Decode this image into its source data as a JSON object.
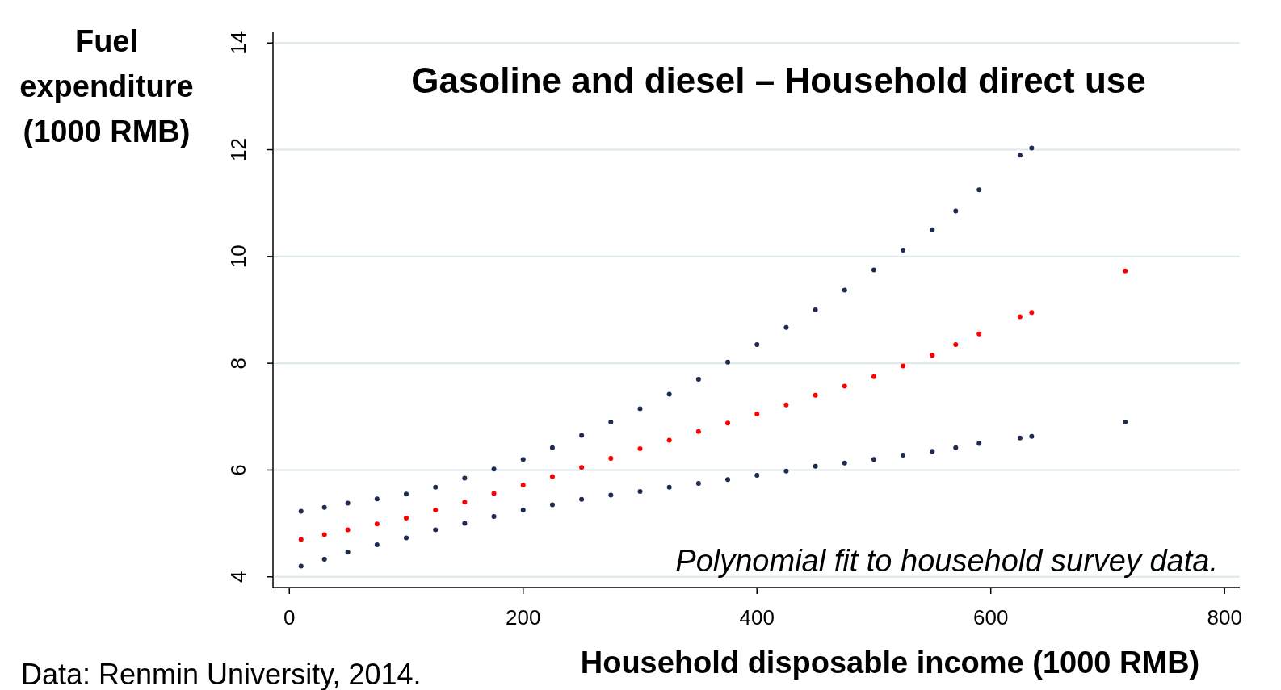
{
  "chart_data": {
    "type": "scatter",
    "title": "Gasoline and diesel – Household direct use",
    "xlabel": "Household disposable income (1000 RMB)",
    "ylabel": "Fuel expenditure (1000 RMB)",
    "annotations": [
      "Polynomial fit to household survey data.",
      "Data: Renmin University, 2014."
    ],
    "xlim": [
      -14,
      813
    ],
    "ylim": [
      3.8,
      14.2
    ],
    "xticks": [
      0,
      200,
      400,
      600,
      800
    ],
    "yticks": [
      4,
      6,
      8,
      10,
      12,
      14
    ],
    "grid": "y",
    "marker": "circle",
    "series": [
      {
        "color": "#1f2a50",
        "x": [
          10,
          30,
          50,
          75,
          100,
          125,
          150,
          175,
          200,
          225,
          250,
          275,
          300,
          325,
          350,
          375,
          400,
          425,
          450,
          475,
          500,
          525,
          550,
          570,
          590,
          625,
          635
        ],
        "values": [
          5.23,
          5.3,
          5.38,
          5.46,
          5.55,
          5.68,
          5.85,
          6.02,
          6.2,
          6.42,
          6.65,
          6.9,
          7.15,
          7.42,
          7.7,
          8.02,
          8.35,
          8.67,
          9.0,
          9.37,
          9.75,
          10.12,
          10.5,
          10.85,
          11.25,
          11.9,
          12.03
        ]
      },
      {
        "color": "#ff0000",
        "x": [
          10,
          30,
          50,
          75,
          100,
          125,
          150,
          175,
          200,
          225,
          250,
          275,
          300,
          325,
          350,
          375,
          400,
          425,
          450,
          475,
          500,
          525,
          550,
          570,
          590,
          625,
          635,
          715
        ],
        "values": [
          4.7,
          4.79,
          4.88,
          4.99,
          5.1,
          5.25,
          5.4,
          5.56,
          5.72,
          5.88,
          6.05,
          6.22,
          6.4,
          6.56,
          6.72,
          6.88,
          7.05,
          7.22,
          7.4,
          7.57,
          7.75,
          7.95,
          8.15,
          8.35,
          8.55,
          8.87,
          8.95,
          9.73
        ]
      },
      {
        "color": "#1f2a50",
        "x": [
          10,
          30,
          50,
          75,
          100,
          125,
          150,
          175,
          200,
          225,
          250,
          275,
          300,
          325,
          350,
          375,
          400,
          425,
          450,
          475,
          500,
          525,
          550,
          570,
          590,
          625,
          635,
          715
        ],
        "values": [
          4.2,
          4.33,
          4.46,
          4.6,
          4.73,
          4.88,
          5.0,
          5.13,
          5.25,
          5.35,
          5.45,
          5.53,
          5.6,
          5.68,
          5.75,
          5.82,
          5.9,
          5.98,
          6.07,
          6.13,
          6.2,
          6.28,
          6.35,
          6.42,
          6.5,
          6.6,
          6.63,
          6.9
        ]
      }
    ]
  }
}
